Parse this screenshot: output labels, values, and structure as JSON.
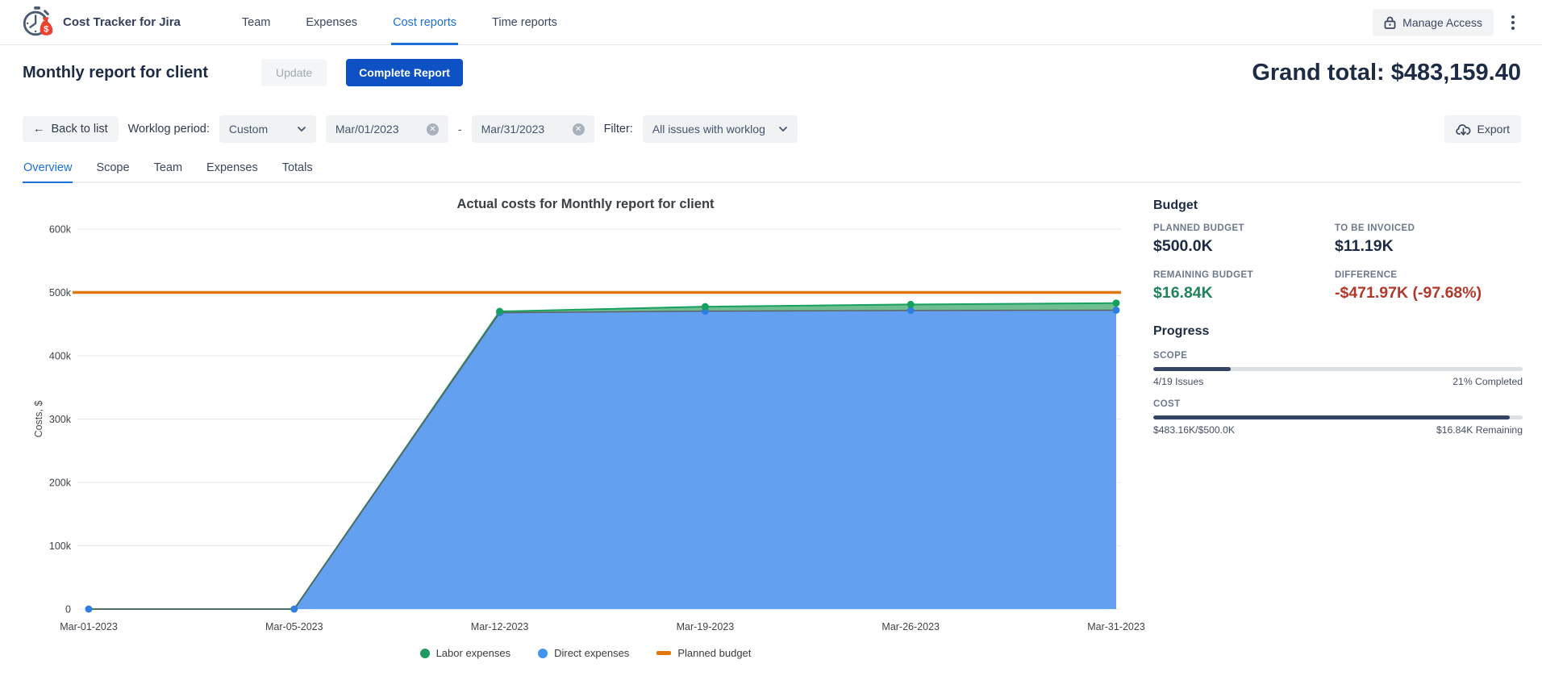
{
  "app": {
    "title": "Cost Tracker for Jira",
    "nav_items": [
      {
        "label": "Team",
        "active": false
      },
      {
        "label": "Expenses",
        "active": false
      },
      {
        "label": "Cost reports",
        "active": true
      },
      {
        "label": "Time reports",
        "active": false
      }
    ],
    "manage_access_label": "Manage Access"
  },
  "header": {
    "report_title": "Monthly report for client",
    "update_label": "Update",
    "complete_report_label": "Complete Report",
    "grand_total": "Grand total: $483,159.40"
  },
  "toolbar": {
    "back_label": "Back to list",
    "back_arrow": "←",
    "worklog_period_label": "Worklog period:",
    "period_value": "Custom",
    "date_from": "Mar/01/2023",
    "range_separator": "-",
    "date_to": "Mar/31/2023",
    "filter_label": "Filter:",
    "filter_value": "All issues with worklog",
    "export_label": "Export"
  },
  "tabs": [
    {
      "label": "Overview",
      "active": true
    },
    {
      "label": "Scope",
      "active": false
    },
    {
      "label": "Team",
      "active": false
    },
    {
      "label": "Expenses",
      "active": false
    },
    {
      "label": "Totals",
      "active": false
    }
  ],
  "chart_data": {
    "type": "area",
    "title": "Actual costs for Monthly report for client",
    "ylabel": "Costs, $",
    "x": [
      "Mar-01-2023",
      "Mar-05-2023",
      "Mar-12-2023",
      "Mar-19-2023",
      "Mar-26-2023",
      "Mar-31-2023"
    ],
    "ylim": [
      0,
      600000
    ],
    "yticks": [
      0,
      100000,
      200000,
      300000,
      400000,
      500000,
      600000
    ],
    "ytick_labels": [
      "0",
      "100k",
      "200k",
      "300k",
      "400k",
      "500k",
      "600k"
    ],
    "grid": "horizontal",
    "legend_position": "bottom",
    "series": [
      {
        "name": "Direct expenses",
        "kind": "stacked-area",
        "fill": "#63a0ef",
        "line_color": "#5d6166",
        "dot_color": "#2f7fe0",
        "values": [
          0,
          0,
          468000,
          470500,
          471500,
          472000
        ]
      },
      {
        "name": "Labor expenses",
        "kind": "stacked-area",
        "fill": "#6fbe92",
        "line_color": "#18a05f",
        "dot_color": "#18a05f",
        "values": [
          0,
          0,
          2000,
          7000,
          9500,
          11160
        ]
      },
      {
        "name": "Planned budget",
        "kind": "line",
        "color": "#e2770d",
        "values": [
          500000,
          500000,
          500000,
          500000,
          500000,
          500000
        ]
      }
    ],
    "legend": [
      {
        "label": "Labor expenses",
        "marker": "circle",
        "color": "#1e9a62"
      },
      {
        "label": "Direct expenses",
        "marker": "circle",
        "color": "#4193f0"
      },
      {
        "label": "Planned budget",
        "marker": "dash",
        "color": "#e2770d"
      }
    ]
  },
  "budget": {
    "heading": "Budget",
    "items": [
      {
        "label": "PLANNED BUDGET",
        "value": "$500.0K",
        "color": "#1d2b45"
      },
      {
        "label": "TO BE INVOICED",
        "value": "$11.19K",
        "color": "#1d2b45"
      },
      {
        "label": "REMAINING BUDGET",
        "value": "$16.84K",
        "color": "#1f845a"
      },
      {
        "label": "DIFFERENCE",
        "value": "-$471.97K (-97.68%)",
        "color": "#b3382c"
      }
    ]
  },
  "progress": {
    "heading": "Progress",
    "bars": [
      {
        "label": "SCOPE",
        "percent": 21,
        "left_text": "4/19 Issues",
        "right_text": "21% Completed"
      },
      {
        "label": "COST",
        "percent": 96.6,
        "left_text": "$483.16K/$500.0K",
        "right_text": "$16.84K Remaining"
      }
    ]
  },
  "colors": {
    "accent_blue": "#1b6fd6",
    "primary_button_blue": "#0d51c4",
    "planned_budget_orange": "#e2770d",
    "direct_expenses_blue": "#63a0ef",
    "labor_expenses_green": "#1e9a62",
    "negative_red": "#b3382c",
    "positive_green": "#1f845a",
    "progress_fill_navy": "#344563"
  }
}
